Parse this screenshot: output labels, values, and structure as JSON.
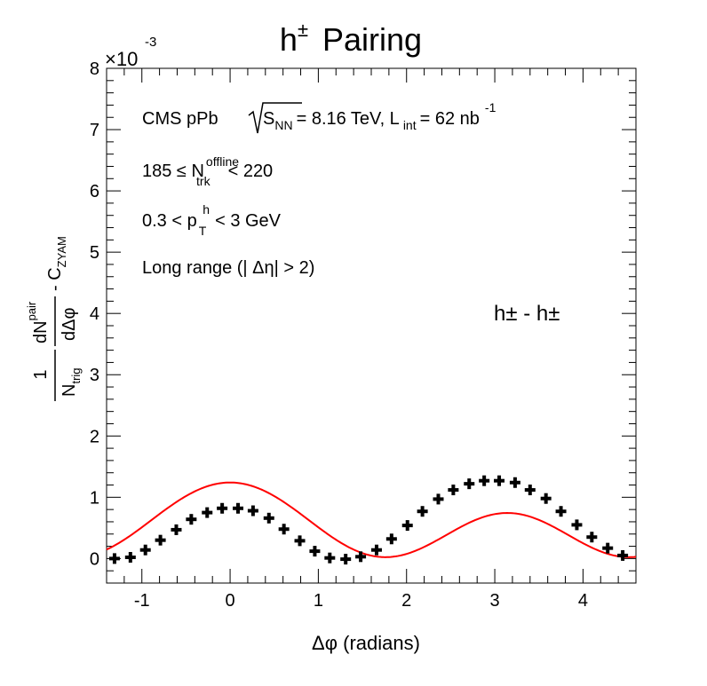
{
  "chart_data": {
    "type": "scatter",
    "title": "h± Pairing",
    "exponent_label": "×10",
    "exponent_power": "-3",
    "xlabel": "Δφ (radians)",
    "ylabel_parts": {
      "one": "1",
      "ntrig": "N",
      "ntrig_sub": "trig",
      "dN": "dN",
      "dN_sup": "pair",
      "dphi": "dΔφ",
      "minus_c": "- C",
      "c_sub": "ZYAM"
    },
    "xlim": [
      -1.4,
      4.6
    ],
    "ylim": [
      -0.4,
      8.0
    ],
    "x_ticks": [
      -1,
      0,
      1,
      2,
      3,
      4
    ],
    "y_ticks": [
      0,
      1,
      2,
      3,
      4,
      5,
      6,
      7,
      8
    ],
    "annotations": {
      "line1_prefix": "CMS pPb",
      "line1_sqrt_s": "S",
      "line1_sqrt_sub": "NN",
      "line1_energy": "= 8.16 TeV, L",
      "line1_lum_sub": "int",
      "line1_lum_val": "= 62 nb",
      "line1_lum_sup": "-1",
      "line2_range": "185  ≤  N",
      "line2_sup": "offline",
      "line2_sub": "trk",
      "line2_end": "< 220",
      "line3_start": "0.3 < p",
      "line3_sub": "T",
      "line3_sup": "h",
      "line3_end": "< 3 GeV",
      "line4": "Long range (|  Δη| > 2)",
      "pair_label": "h± - h±"
    },
    "series": [
      {
        "marker": "cross",
        "color": "#000000",
        "x": [
          -1.31,
          -1.13,
          -0.96,
          -0.79,
          -0.61,
          -0.44,
          -0.26,
          -0.09,
          0.09,
          0.26,
          0.44,
          0.61,
          0.79,
          0.96,
          1.13,
          1.31,
          1.48,
          1.66,
          1.83,
          2.01,
          2.18,
          2.36,
          2.53,
          2.71,
          2.88,
          3.05,
          3.23,
          3.4,
          3.58,
          3.75,
          3.93,
          4.1,
          4.28,
          4.45
        ],
        "y": [
          0.0,
          0.02,
          0.14,
          0.3,
          0.47,
          0.64,
          0.75,
          0.82,
          0.82,
          0.78,
          0.66,
          0.48,
          0.29,
          0.12,
          0.01,
          -0.01,
          0.03,
          0.14,
          0.32,
          0.54,
          0.77,
          0.97,
          1.12,
          1.22,
          1.27,
          1.27,
          1.24,
          1.12,
          0.98,
          0.77,
          0.55,
          0.35,
          0.17,
          0.05
        ]
      }
    ],
    "fit": {
      "color": "#ff0000",
      "a0": 0.525,
      "v1": 0.265,
      "v2": 0.445,
      "v3": -0.028,
      "v4": 0.0
    }
  }
}
